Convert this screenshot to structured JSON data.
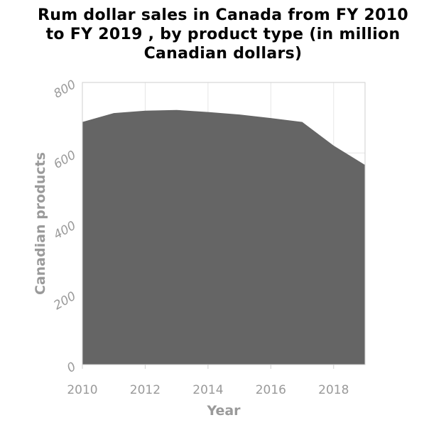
{
  "chart_data": {
    "type": "area",
    "title_lines": [
      "Rum dollar sales in Canada from FY 2010",
      "to FY 2019 , by product type (in million",
      "Canadian dollars)"
    ],
    "xlabel": "Year",
    "ylabel": "Canadian products",
    "xlim": [
      2010,
      2019
    ],
    "ylim": [
      0,
      800
    ],
    "x_ticks": [
      2010,
      2012,
      2014,
      2016,
      2018
    ],
    "y_ticks": [
      0,
      200,
      400,
      600,
      800
    ],
    "grid": true,
    "x": [
      2010,
      2011,
      2012,
      2013,
      2014,
      2015,
      2016,
      2017,
      2018,
      2019
    ],
    "values": [
      688,
      713,
      720,
      722,
      716,
      709,
      699,
      688,
      621,
      566
    ],
    "fill_color": "#656565"
  }
}
